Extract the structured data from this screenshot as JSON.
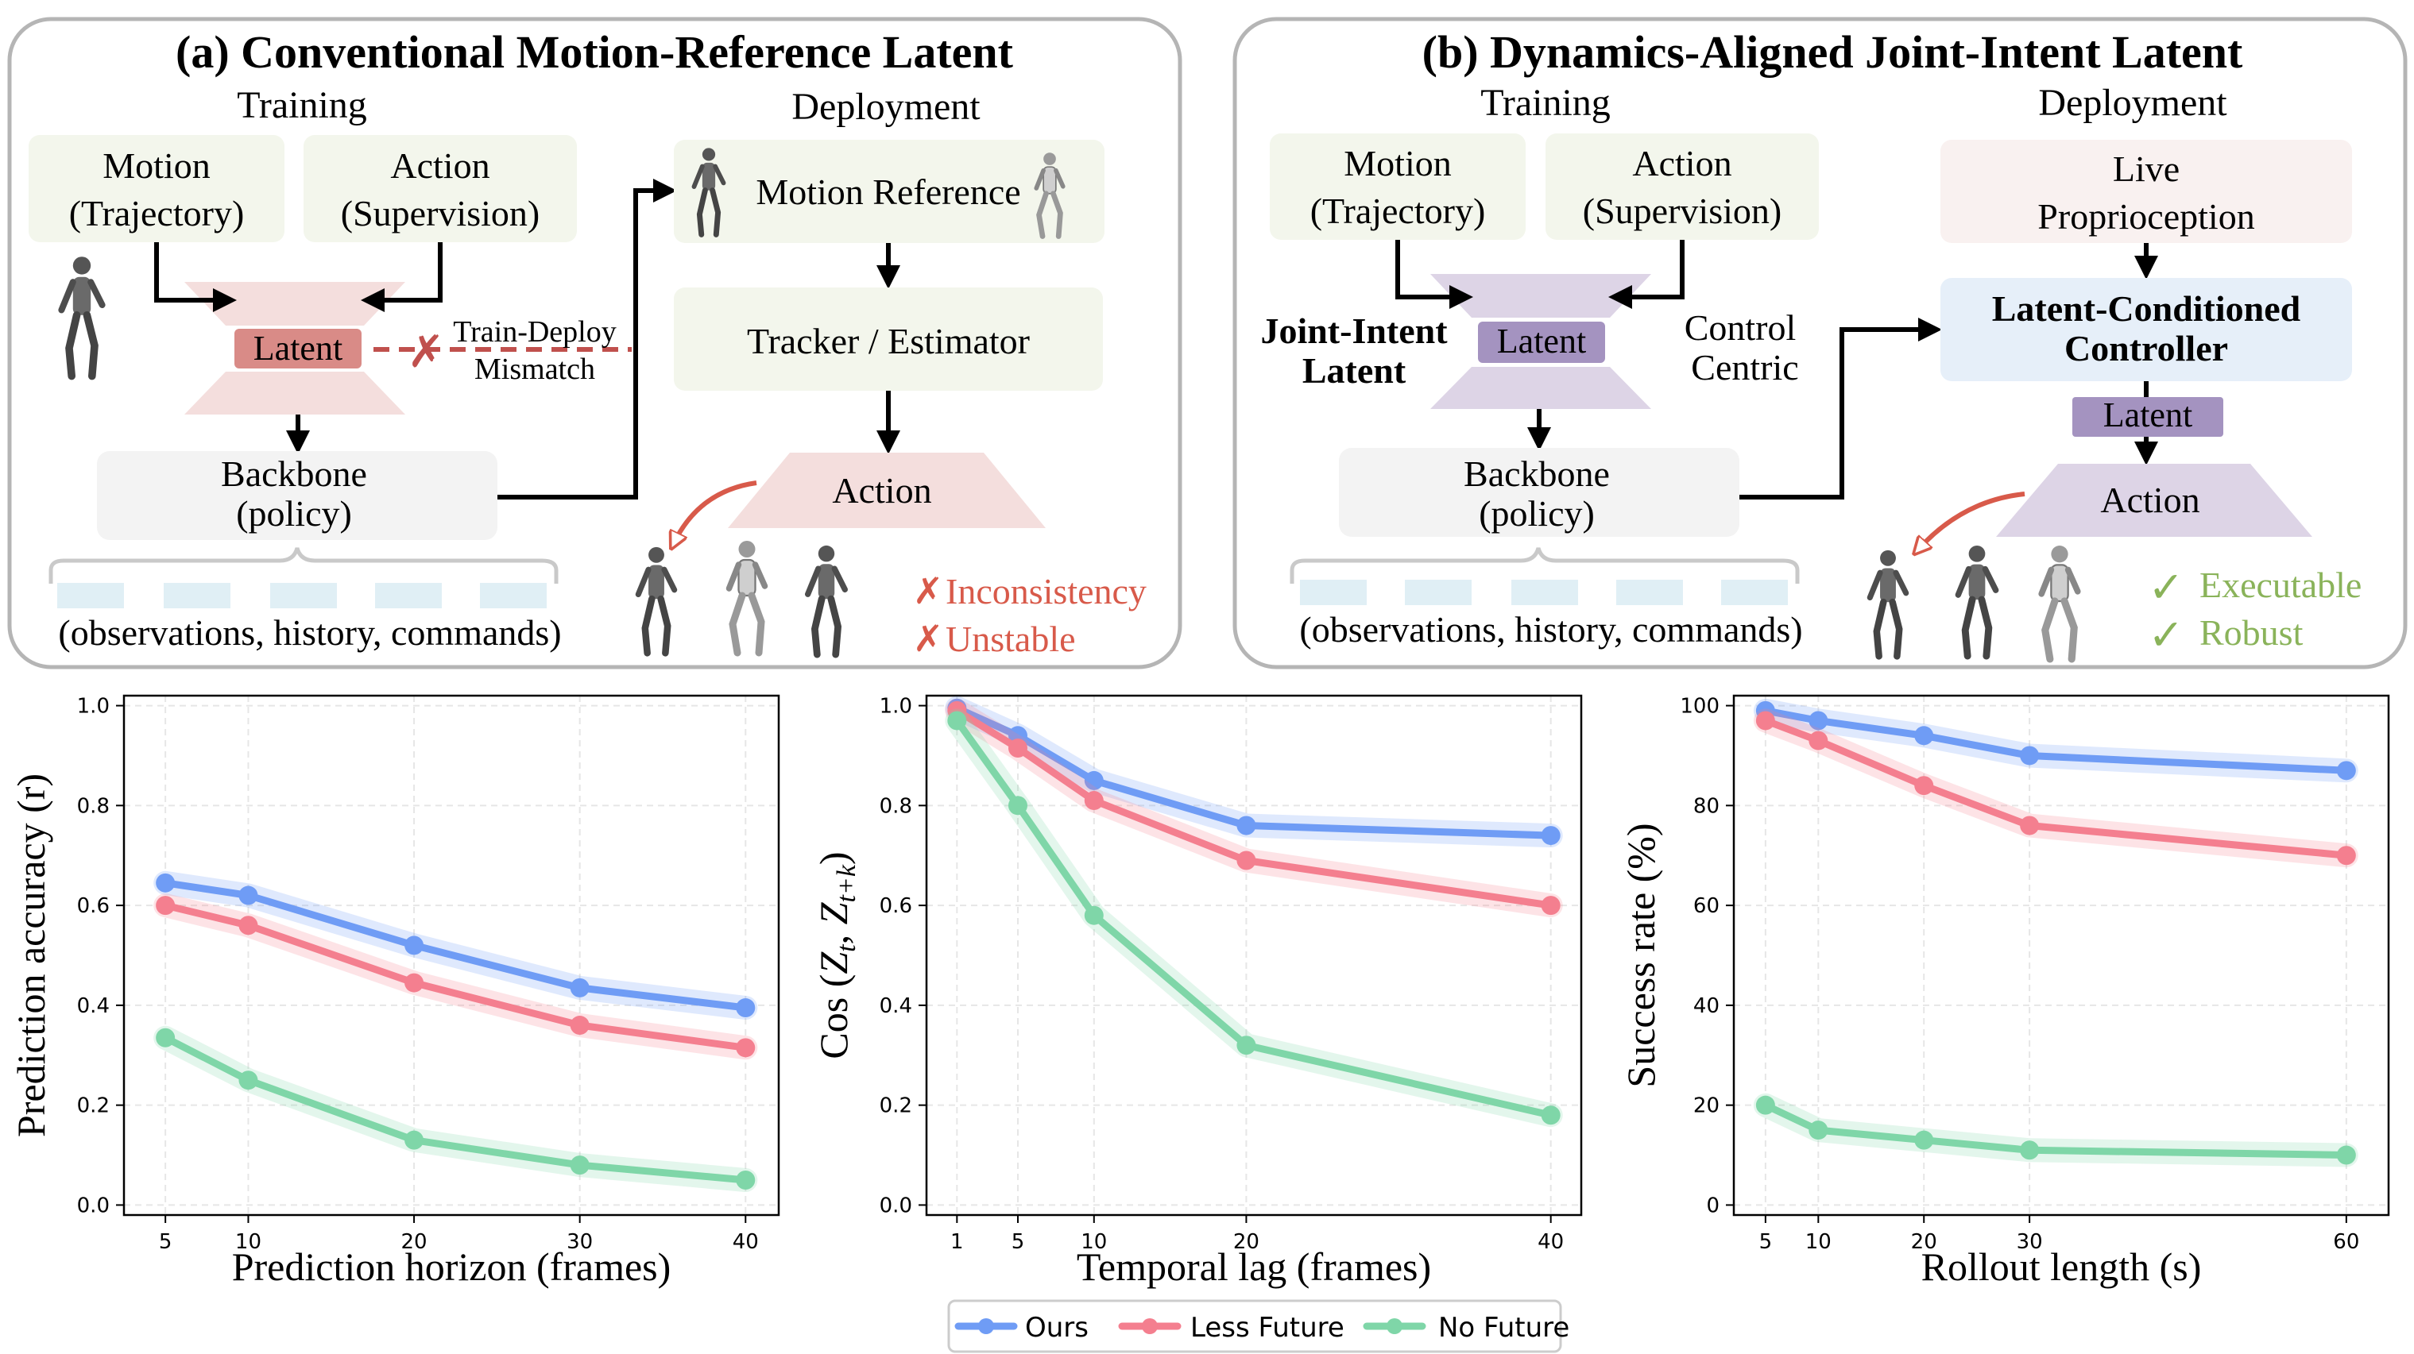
{
  "panel_a": {
    "title": "(a) Conventional Motion-Reference Latent",
    "training_label": "Training",
    "deployment_label": "Deployment",
    "motion_box": [
      "Motion",
      "(Trajectory)"
    ],
    "action_box": [
      "Action",
      "(Supervision)"
    ],
    "latent_label": "Latent",
    "mismatch_label": [
      "Train-Deploy",
      "Mismatch"
    ],
    "backbone_box": [
      "Backbone",
      "(policy)"
    ],
    "inputs_label": "(observations, history, commands)",
    "motion_reference_label": "Motion Reference",
    "tracker_label": "Tracker / Estimator",
    "action_label": "Action",
    "results": [
      "Inconsistency",
      "Unstable"
    ]
  },
  "panel_b": {
    "title": "(b) Dynamics-Aligned Joint-Intent Latent",
    "training_label": "Training",
    "deployment_label": "Deployment",
    "motion_box": [
      "Motion",
      "(Trajectory)"
    ],
    "action_box": [
      "Action",
      "(Supervision)"
    ],
    "joint_intent_label": [
      "Joint-Intent",
      "Latent"
    ],
    "latent_label": "Latent",
    "control_centric_label": [
      "Control",
      "Centric"
    ],
    "backbone_box": [
      "Backbone",
      "(policy)"
    ],
    "inputs_label": "(observations, history, commands)",
    "proprioception_box": [
      "Live",
      "Proprioception"
    ],
    "controller_box": [
      "Latent-Conditioned",
      "Controller"
    ],
    "latent2_label": "Latent",
    "action_label": "Action",
    "results": [
      "Executable",
      "Robust"
    ]
  },
  "colors": {
    "ours": "#6f9cf5",
    "less_future": "#f47f8f",
    "no_future": "#7fd6a8",
    "bad": "#d85a4a",
    "good": "#8ab35a"
  },
  "legend": [
    "Ours",
    "Less Future",
    "No Future"
  ],
  "chart_data": [
    {
      "type": "line",
      "xlabel": "Prediction horizon (frames)",
      "ylabel": "Prediction accuracy (r)",
      "x": [
        5,
        10,
        20,
        30,
        40
      ],
      "xticks": [
        "5",
        "10",
        "20",
        "30",
        "40"
      ],
      "yticks": [
        "0.0",
        "0.2",
        "0.4",
        "0.6",
        "0.8",
        "1.0"
      ],
      "xlim": [
        2.5,
        42
      ],
      "ylim": [
        -0.02,
        1.02
      ],
      "series": [
        {
          "name": "Ours",
          "values": [
            0.645,
            0.62,
            0.52,
            0.435,
            0.395
          ]
        },
        {
          "name": "Less Future",
          "values": [
            0.6,
            0.56,
            0.445,
            0.36,
            0.315
          ]
        },
        {
          "name": "No Future",
          "values": [
            0.335,
            0.25,
            0.13,
            0.08,
            0.05
          ]
        }
      ],
      "grid": true
    },
    {
      "type": "line",
      "xlabel": "Temporal lag (frames)",
      "ylabel": "Cos (Z_t, Z_t+k)",
      "ylabel_parts": [
        "Cos (",
        "Z",
        "t",
        ", ",
        "Z",
        "t+k",
        ")"
      ],
      "x": [
        1,
        5,
        10,
        20,
        40
      ],
      "xticks": [
        "1",
        "5",
        "10",
        "20",
        "40"
      ],
      "yticks": [
        "0.0",
        "0.2",
        "0.4",
        "0.6",
        "0.8",
        "1.0"
      ],
      "xlim": [
        -1,
        42
      ],
      "ylim": [
        -0.02,
        1.02
      ],
      "series": [
        {
          "name": "Ours",
          "values": [
            0.995,
            0.94,
            0.85,
            0.76,
            0.74
          ]
        },
        {
          "name": "Less Future",
          "values": [
            0.99,
            0.915,
            0.81,
            0.69,
            0.6
          ]
        },
        {
          "name": "No Future",
          "values": [
            0.97,
            0.8,
            0.58,
            0.32,
            0.18
          ]
        }
      ],
      "grid": true
    },
    {
      "type": "line",
      "xlabel": "Rollout length (s)",
      "ylabel": "Success rate (%)",
      "x": [
        5,
        10,
        20,
        30,
        60
      ],
      "xticks": [
        "5",
        "10",
        "20",
        "30",
        "60"
      ],
      "yticks": [
        "0",
        "20",
        "40",
        "60",
        "80",
        "100"
      ],
      "xlim": [
        2,
        64
      ],
      "ylim": [
        -2,
        102
      ],
      "series": [
        {
          "name": "Ours",
          "values": [
            99,
            97,
            94,
            90,
            87
          ]
        },
        {
          "name": "Less Future",
          "values": [
            97,
            93,
            84,
            76,
            70
          ]
        },
        {
          "name": "No Future",
          "values": [
            20,
            15,
            13,
            11,
            10
          ]
        }
      ],
      "grid": true
    }
  ]
}
